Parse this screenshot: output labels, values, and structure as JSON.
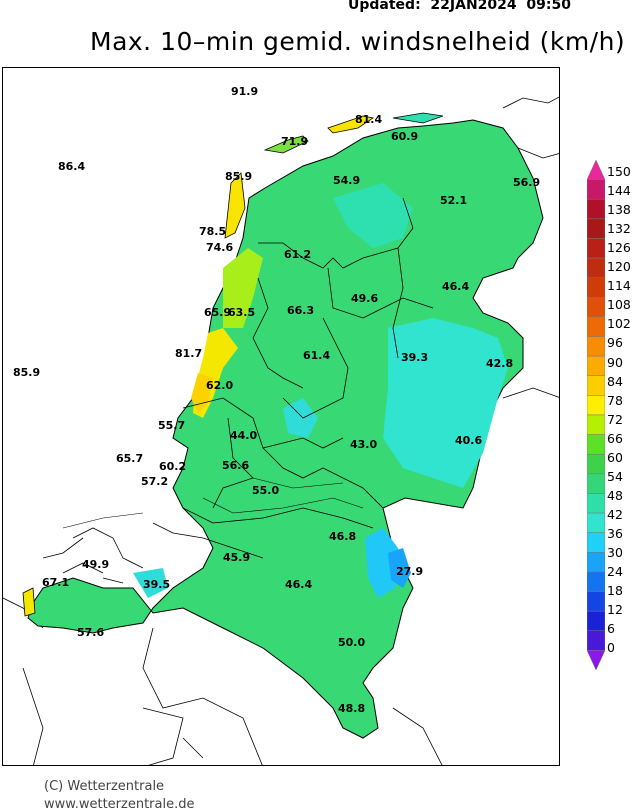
{
  "header": {
    "updated": "Updated:  22JAN2024  09:50",
    "title": "Max. 10–min gemid. windsnelheid (km/h)"
  },
  "legend": {
    "levels": [
      "150",
      "144",
      "138",
      "132",
      "126",
      "120",
      "114",
      "108",
      "102",
      "96",
      "90",
      "84",
      "78",
      "72",
      "66",
      "60",
      "54",
      "48",
      "42",
      "36",
      "30",
      "24",
      "18",
      "12",
      "6",
      "0"
    ],
    "colors": [
      "#e8289a",
      "#c8186a",
      "#b0102a",
      "#a81818",
      "#b82018",
      "#c02c10",
      "#d03c08",
      "#e05008",
      "#ee6a04",
      "#f88c04",
      "#fcac00",
      "#fcce00",
      "#fcf000",
      "#b4f000",
      "#5ce028",
      "#3cd24a",
      "#32d878",
      "#2ee0a8",
      "#30e4d0",
      "#20d0f8",
      "#18a4f8",
      "#1474f0",
      "#1444e4",
      "#1a22d8",
      "#4a18d8",
      "#8a18e8"
    ]
  },
  "map": {
    "labels": [
      {
        "text": "91.9"
      },
      {
        "text": "81.4"
      },
      {
        "text": "71.9"
      },
      {
        "text": "60.9"
      },
      {
        "text": "86.4"
      },
      {
        "text": "85.9"
      },
      {
        "text": "54.9"
      },
      {
        "text": "56.9"
      },
      {
        "text": "52.1"
      },
      {
        "text": "78.5"
      },
      {
        "text": "74.6"
      },
      {
        "text": "61.2"
      },
      {
        "text": "49.6"
      },
      {
        "text": "46.4"
      },
      {
        "text": "65.9"
      },
      {
        "text": "63.5"
      },
      {
        "text": "66.3"
      },
      {
        "text": "81.7"
      },
      {
        "text": "61.4"
      },
      {
        "text": "39.3"
      },
      {
        "text": "85.9"
      },
      {
        "text": "62.0"
      },
      {
        "text": "42.8"
      },
      {
        "text": "55.7"
      },
      {
        "text": "44.0"
      },
      {
        "text": "43.0"
      },
      {
        "text": "40.6"
      },
      {
        "text": "65.7"
      },
      {
        "text": "60.2"
      },
      {
        "text": "56.6"
      },
      {
        "text": "57.2"
      },
      {
        "text": "55.0"
      },
      {
        "text": "46.8"
      },
      {
        "text": "49.9"
      },
      {
        "text": "45.9"
      },
      {
        "text": "27.9"
      },
      {
        "text": "67.1"
      },
      {
        "text": "39.5"
      },
      {
        "text": "46.4"
      },
      {
        "text": "57.6"
      },
      {
        "text": "50.0"
      },
      {
        "text": "48.8"
      }
    ]
  },
  "footer": {
    "copyright": "(C) Wetterzentrale",
    "url": "www.wetterzentrale.de"
  }
}
